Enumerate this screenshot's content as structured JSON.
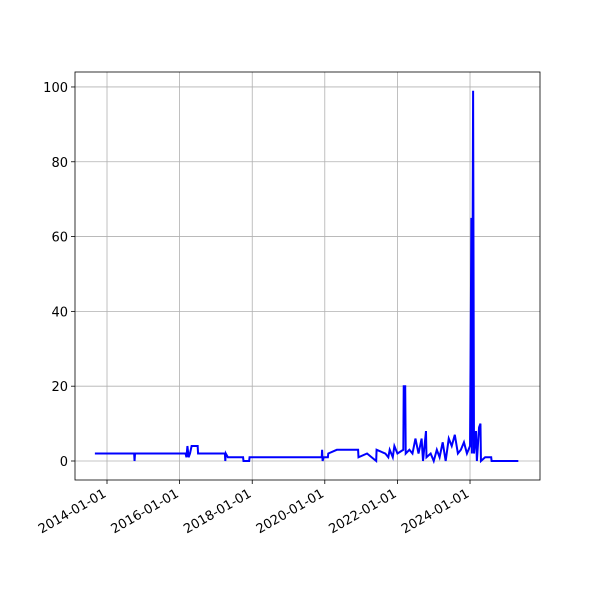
{
  "chart_data": {
    "type": "line",
    "color": "#0000ff",
    "grid": true,
    "x": [
      "2013-09-01",
      "2014-10-01",
      "2014-10-05",
      "2014-10-10",
      "2016-03-01",
      "2016-03-10",
      "2016-03-20",
      "2016-04-01",
      "2016-04-15",
      "2016-05-01",
      "2016-07-01",
      "2016-07-05",
      "2017-04-01",
      "2017-04-05",
      "2017-04-10",
      "2017-05-01",
      "2017-10-01",
      "2017-10-05",
      "2017-12-01",
      "2017-12-05",
      "2019-12-01",
      "2019-12-05",
      "2019-12-10",
      "2019-12-20",
      "2020-02-01",
      "2020-02-05",
      "2020-05-01",
      "2020-12-01",
      "2020-12-05",
      "2021-03-01",
      "2021-06-01",
      "2021-06-05",
      "2021-09-01",
      "2021-10-01",
      "2021-10-15",
      "2021-11-15",
      "2021-12-01",
      "2022-01-01",
      "2022-03-01",
      "2022-03-05",
      "2022-03-20",
      "2022-03-25",
      "2022-05-01",
      "2022-06-01",
      "2022-07-01",
      "2022-08-01",
      "2022-09-01",
      "2022-09-15",
      "2022-10-15",
      "2022-10-20",
      "2022-12-01",
      "2023-01-01",
      "2023-02-01",
      "2023-03-01",
      "2023-04-01",
      "2023-05-01",
      "2023-06-01",
      "2023-07-01",
      "2023-08-01",
      "2023-09-01",
      "2023-10-01",
      "2023-11-01",
      "2023-12-01",
      "2024-01-01",
      "2024-01-15",
      "2024-01-20",
      "2024-02-01",
      "2024-02-10",
      "2024-03-01",
      "2024-03-10",
      "2024-04-01",
      "2024-04-15",
      "2024-04-20",
      "2024-06-01",
      "2024-08-01",
      "2024-08-05",
      "2025-05-01"
    ],
    "values": [
      2,
      2,
      0,
      2,
      2,
      1,
      4,
      1,
      2,
      4,
      4,
      2,
      2,
      0,
      2,
      1,
      1,
      0,
      0,
      1,
      1,
      3,
      0,
      1,
      1,
      2,
      3,
      3,
      1,
      2,
      0,
      3,
      2,
      1,
      3,
      1,
      4,
      2,
      3,
      20,
      20,
      2,
      3,
      2,
      6,
      2,
      6,
      0,
      8,
      1,
      2,
      0,
      3,
      1,
      5,
      0,
      6,
      4,
      7,
      2,
      3,
      5,
      2,
      4,
      65,
      2,
      99,
      2,
      8,
      0,
      9,
      10,
      0,
      1,
      1,
      0,
      0
    ],
    "xlim": [
      "2013-02-13",
      "2025-12-05"
    ],
    "xticks": [
      "2014-01-01",
      "2016-01-01",
      "2018-01-01",
      "2020-01-01",
      "2022-01-01",
      "2024-01-01"
    ],
    "ylim": [
      -5.08,
      104
    ],
    "yticks": [
      0,
      20,
      40,
      60,
      80,
      100
    ]
  }
}
